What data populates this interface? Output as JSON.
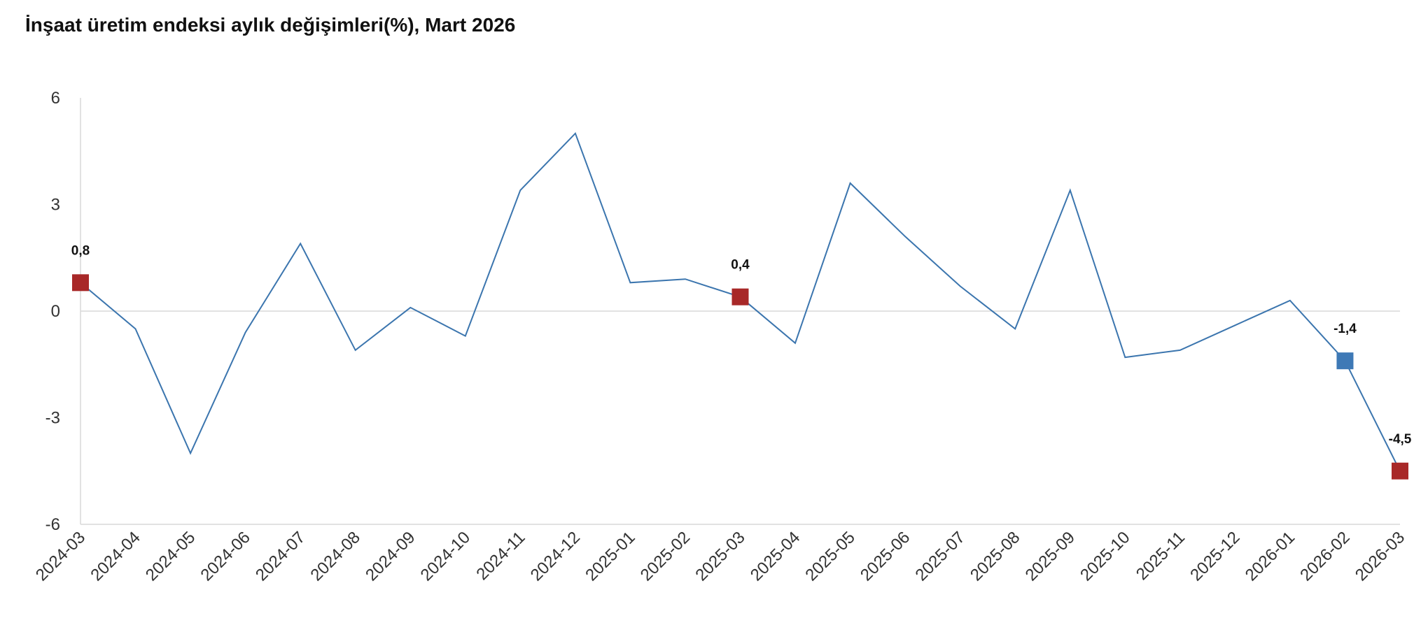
{
  "title": "İnşaat üretim endeksi aylık değişimleri(%), Mart 2026",
  "colors": {
    "line": "#3b75ae",
    "highlight_red": "#a82828",
    "highlight_blue": "#3e79b6",
    "axis": "#d9d9d9",
    "text": "#333333"
  },
  "chart_data": {
    "type": "line",
    "title": "İnşaat üretim endeksi aylık değişimleri(%), Mart 2026",
    "xlabel": "",
    "ylabel": "",
    "x": [
      "2024-03",
      "2024-04",
      "2024-05",
      "2024-06",
      "2024-07",
      "2024-08",
      "2024-09",
      "2024-10",
      "2024-11",
      "2024-12",
      "2025-01",
      "2025-02",
      "2025-03",
      "2025-04",
      "2025-05",
      "2025-06",
      "2025-07",
      "2025-08",
      "2025-09",
      "2025-10",
      "2025-11",
      "2025-12",
      "2026-01",
      "2026-02",
      "2026-03"
    ],
    "series": [
      {
        "values": [
          0.8,
          -0.5,
          -4.0,
          -0.6,
          1.9,
          -1.1,
          0.1,
          -0.7,
          3.4,
          5.0,
          0.8,
          0.9,
          0.4,
          -0.9,
          3.6,
          2.1,
          0.7,
          -0.5,
          3.4,
          -1.3,
          -1.1,
          -0.4,
          0.3,
          -1.4,
          -4.5
        ]
      }
    ],
    "ylim": [
      -6,
      6
    ],
    "yticks": [
      6,
      3,
      0,
      -3,
      -6
    ],
    "ytick_labels": [
      "6",
      "3",
      "0",
      "-3",
      "-6"
    ],
    "grid": false,
    "zero_line": true,
    "highlights": [
      {
        "index": 0,
        "label": "0,8",
        "color": "red"
      },
      {
        "index": 12,
        "label": "0,4",
        "color": "red"
      },
      {
        "index": 23,
        "label": "-1,4",
        "color": "blue"
      },
      {
        "index": 24,
        "label": "-4,5",
        "color": "red"
      }
    ]
  }
}
